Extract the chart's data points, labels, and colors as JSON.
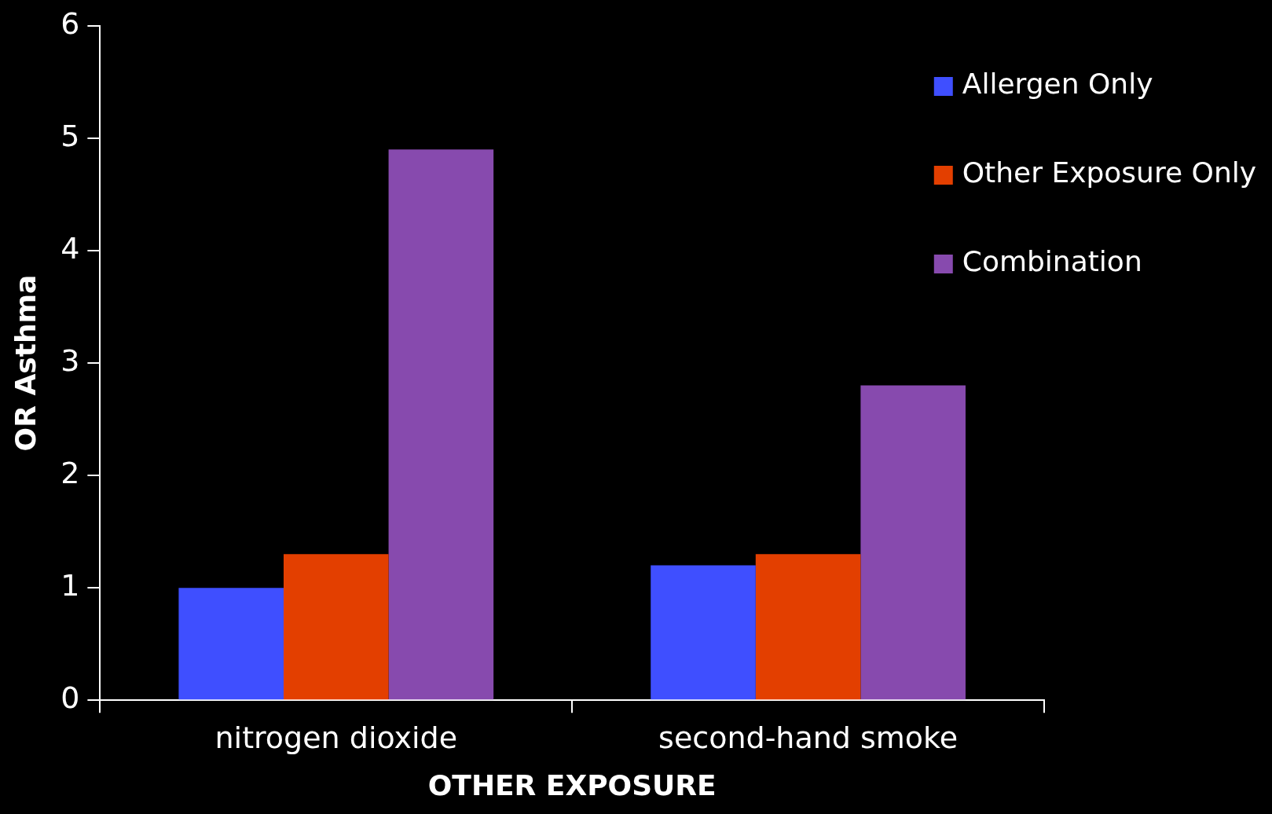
{
  "chart_data": {
    "type": "bar",
    "xlabel": "OTHER EXPOSURE",
    "ylabel": "OR Asthma",
    "categories": [
      "nitrogen dioxide",
      "second-hand smoke"
    ],
    "series": [
      {
        "name": "Allergen Only",
        "color": "#3f4fff",
        "values": [
          1.0,
          1.2
        ]
      },
      {
        "name": "Other Exposure Only",
        "color": "#e33f00",
        "values": [
          1.3,
          1.3
        ]
      },
      {
        "name": "Combination",
        "color": "#874aae",
        "values": [
          4.9,
          2.8
        ]
      }
    ],
    "ylim": [
      0,
      6
    ],
    "yticks": [
      0,
      1,
      2,
      3,
      4,
      5,
      6
    ],
    "grid": false,
    "legend": "top right"
  }
}
